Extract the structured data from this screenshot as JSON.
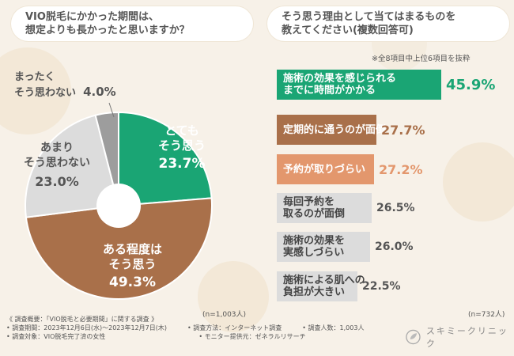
{
  "left_title": {
    "line1": "VIO脱毛にかかった期間は、",
    "line2": "想定よりも長かったと思いますか？"
  },
  "right_title": {
    "line1": "そう思う理由として当てはまるものを",
    "line2": "教えてください(複数回答可)"
  },
  "right_note": "※全8項目中上位6項目を抜粋",
  "pie_n": "(n=1,003人)",
  "bar_n": "(n=732人)",
  "colors": {
    "green": "#1aa574",
    "brown": "#a9704a",
    "salmon": "#e3976d",
    "gray_light": "#dcdcdc",
    "gray_mid": "#bdbdbd",
    "gray_dark": "#9d9d9d"
  },
  "chart_data": [
    {
      "type": "pie",
      "title": "VIO脱毛にかかった期間は、想定よりも長かったと思いますか？",
      "slices": [
        {
          "label_1": "とても",
          "label_2": "そう思う",
          "value": 23.7,
          "value_text": "23.7%"
        },
        {
          "label_1": "ある程度は",
          "label_2": "そう思う",
          "value": 49.3,
          "value_text": "49.3%"
        },
        {
          "label_1": "あまり",
          "label_2": "そう思わない",
          "value": 23.0,
          "value_text": "23.0%"
        },
        {
          "label_1": "まったく",
          "label_2": "そう思わない",
          "value": 4.0,
          "value_text": "4.0%"
        }
      ]
    },
    {
      "type": "bar",
      "title": "そう思う理由として当てはまるものを教えてください(複数回答可)",
      "bars": [
        {
          "line1": "施術の効果を感じられる",
          "line2": "までに時間がかかる",
          "value": 45.9,
          "value_text": "45.9%"
        },
        {
          "line1": "定期的に通うのが面倒",
          "line2": "",
          "value": 27.7,
          "value_text": "27.7%"
        },
        {
          "line1": "予約が取りづらい",
          "line2": "",
          "value": 27.2,
          "value_text": "27.2%"
        },
        {
          "line1": "毎回予約を",
          "line2": "取るのが面倒",
          "value": 26.5,
          "value_text": "26.5%"
        },
        {
          "line1": "施術の効果を",
          "line2": "実感しづらい",
          "value": 26.0,
          "value_text": "26.0%"
        },
        {
          "line1": "施術による肌への",
          "line2": "負担が大きい",
          "value": 22.5,
          "value_text": "22.5%"
        }
      ]
    }
  ],
  "survey": {
    "line1": "《 調査概要：「VIO脱毛と必要期間」に関する調査 》",
    "period": "• 調査期間：2023年12月6日(水)～2023年12月7日(木)",
    "target": "• 調査対象：VIO脱毛完了済の女性",
    "method": "• 調査方法：インターネット調査",
    "provider": "• モニター提供元：ゼネラルリサーチ",
    "count": "• 調査人数：1,003人"
  },
  "clinic": {
    "name": "スキミークリニック",
    "icon": "leaf-circle-icon"
  }
}
